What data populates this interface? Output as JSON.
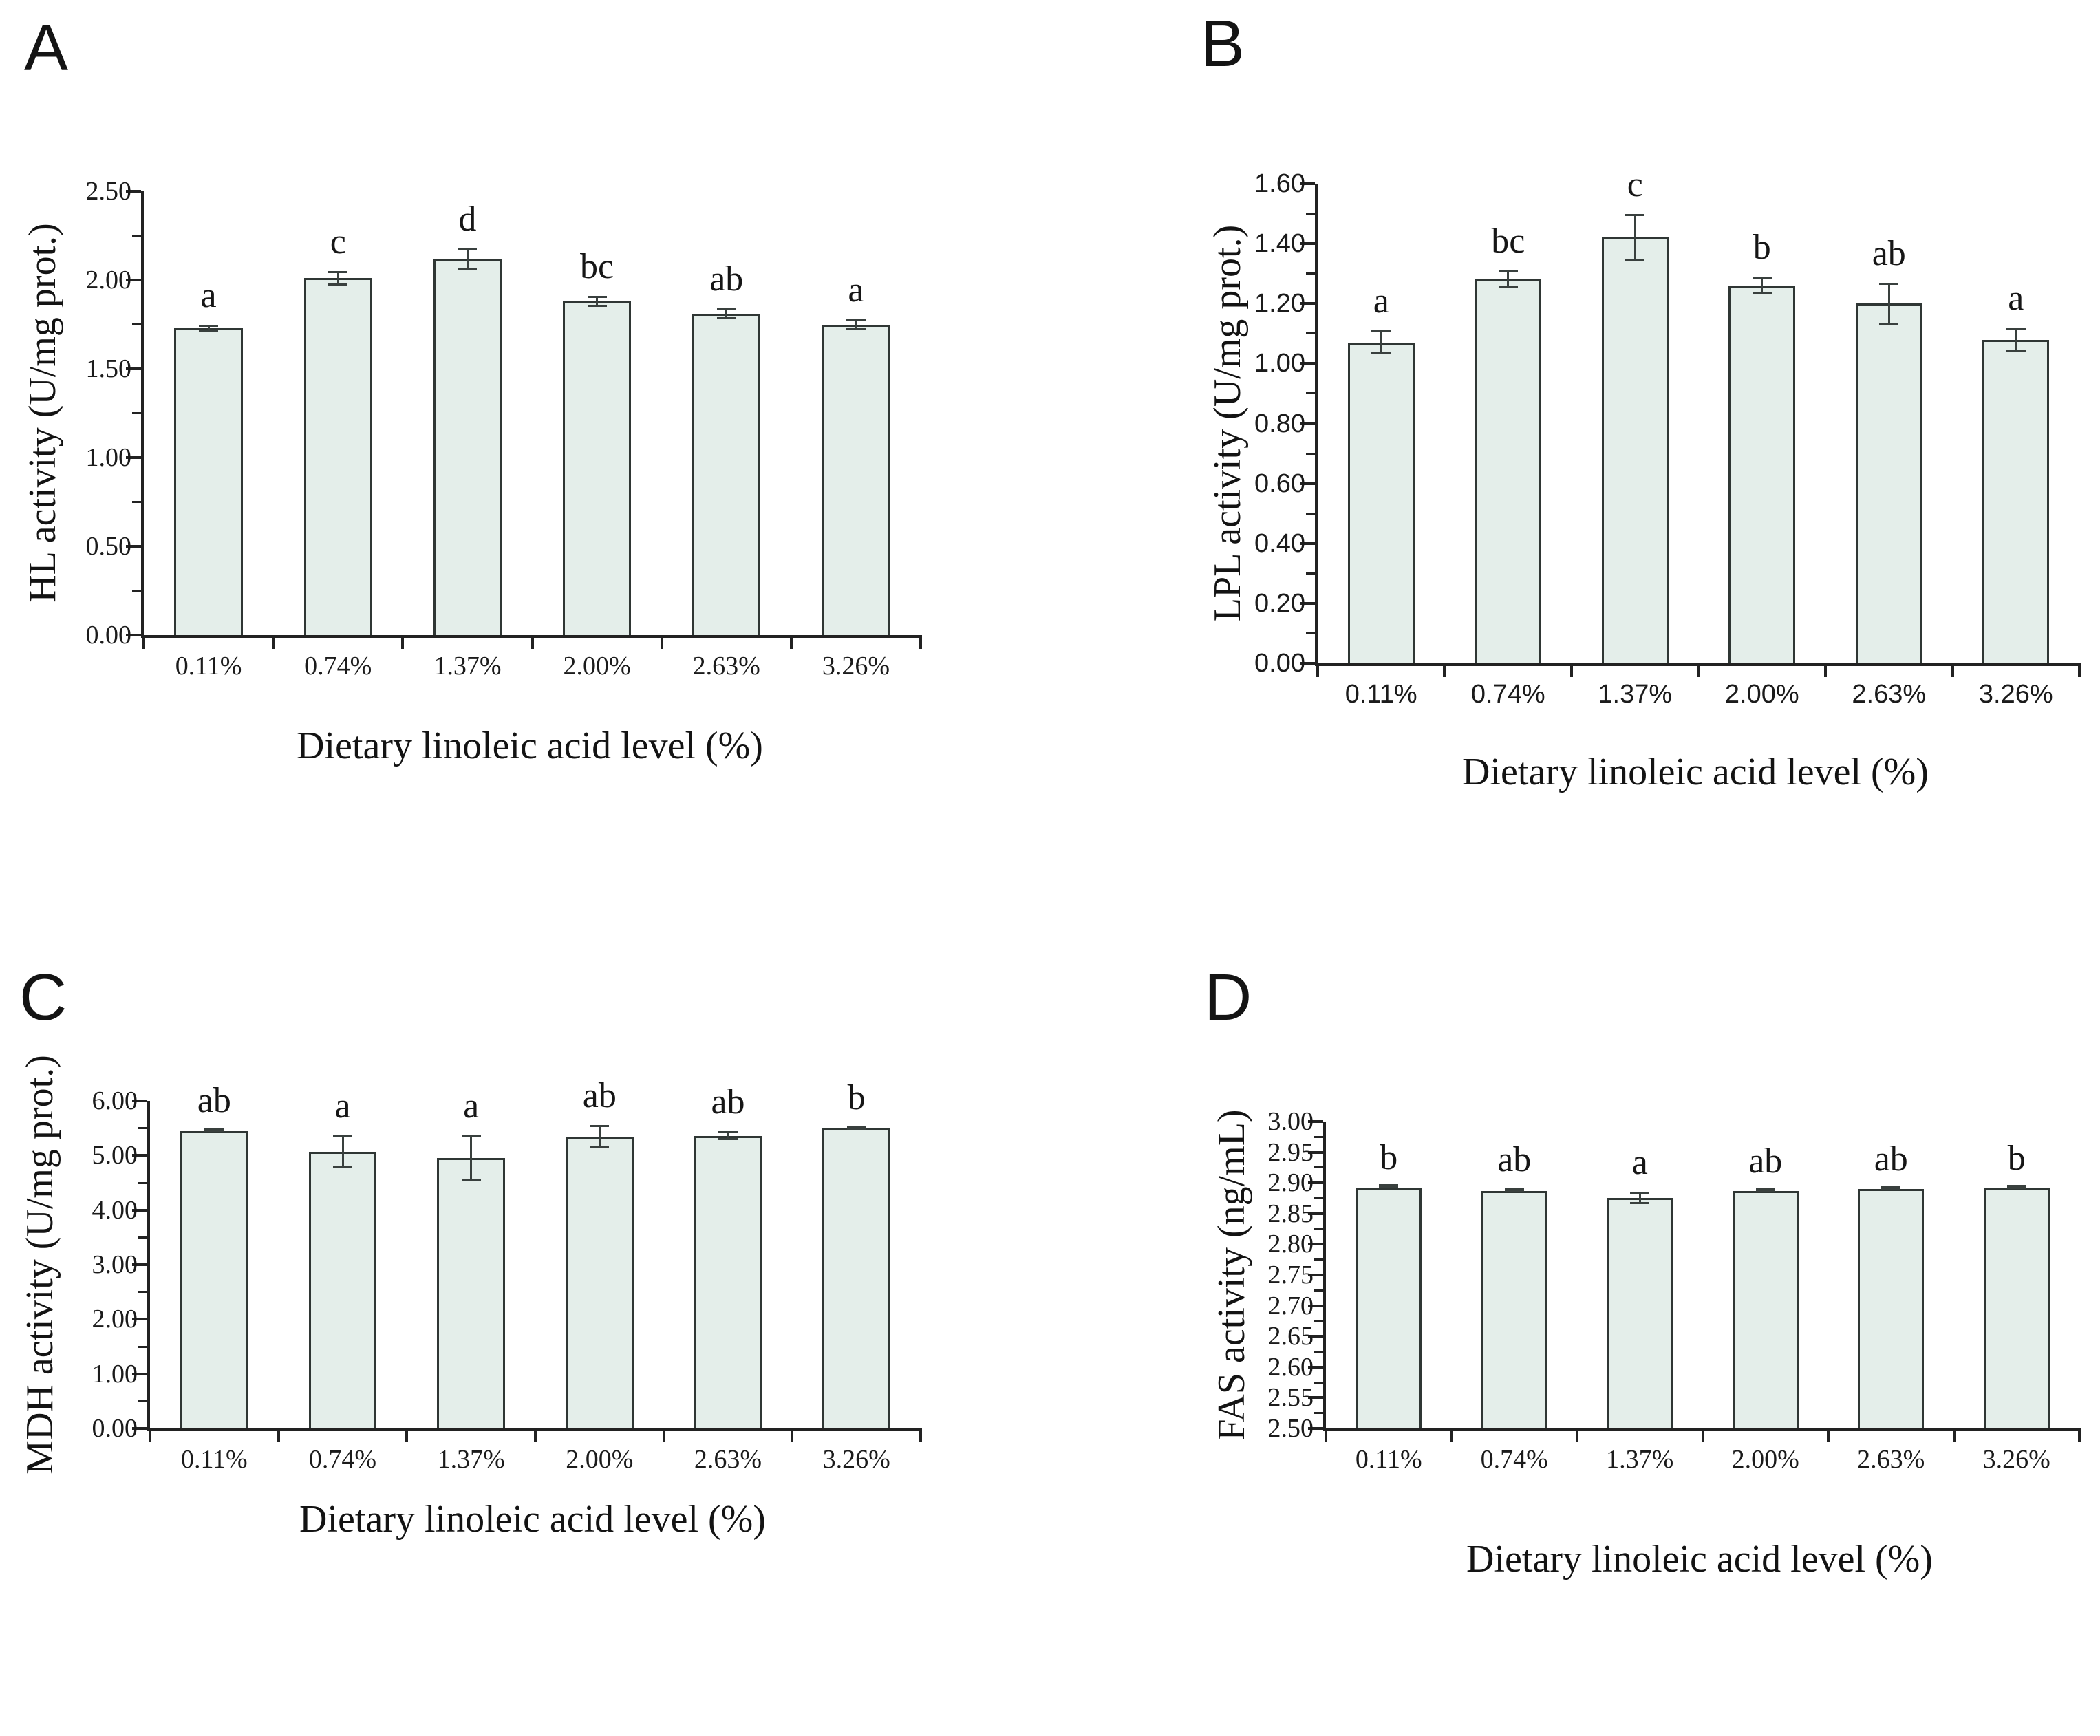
{
  "figure": {
    "background_color": "#ffffff",
    "bar_fill": "#e4eeea",
    "bar_border": "#2f3634",
    "axis_color": "#222222",
    "error_bar_color": "#39403e",
    "shared_xlabel": "Dietary linoleic acid level (%)"
  },
  "chart_data": [
    {
      "panel": "A",
      "type": "bar",
      "title": "",
      "ylabel": "HL activity (U/mg prot.)",
      "xlabel": "Dietary linoleic acid level (%)",
      "categories": [
        "0.11%",
        "0.74%",
        "1.37%",
        "2.00%",
        "2.63%",
        "3.26%"
      ],
      "values": [
        1.73,
        2.01,
        2.12,
        1.88,
        1.81,
        1.75
      ],
      "errors": [
        0.02,
        0.04,
        0.06,
        0.03,
        0.03,
        0.03
      ],
      "sig_letters": [
        "a",
        "c",
        "d",
        "bc",
        "ab",
        "a"
      ],
      "ylim": [
        0.0,
        2.5
      ],
      "ytick_step": 0.5,
      "ytick_labels": [
        "0.00",
        "0.50",
        "1.00",
        "1.50",
        "2.00",
        "2.50"
      ],
      "tick_font": "serif",
      "grid": false,
      "legend": null
    },
    {
      "panel": "B",
      "type": "bar",
      "title": "",
      "ylabel": "LPL activity (U/mg prot.)",
      "xlabel": "Dietary linoleic acid level (%)",
      "categories": [
        "0.11%",
        "0.74%",
        "1.37%",
        "2.00%",
        "2.63%",
        "3.26%"
      ],
      "values": [
        1.07,
        1.28,
        1.42,
        1.26,
        1.2,
        1.08
      ],
      "errors": [
        0.04,
        0.03,
        0.08,
        0.03,
        0.07,
        0.04
      ],
      "sig_letters": [
        "a",
        "bc",
        "c",
        "b",
        "ab",
        "a"
      ],
      "ylim": [
        0.0,
        1.6
      ],
      "ytick_step": 0.2,
      "ytick_labels": [
        "0.00",
        "0.20",
        "0.40",
        "0.60",
        "0.80",
        "1.00",
        "1.20",
        "1.40",
        "1.60"
      ],
      "tick_font": "sans",
      "grid": false,
      "legend": null
    },
    {
      "panel": "C",
      "type": "bar",
      "title": "",
      "ylabel": "MDH activity (U/mg prot.)",
      "xlabel": "Dietary linoleic acid level (%)",
      "categories": [
        "0.11%",
        "0.74%",
        "1.37%",
        "2.00%",
        "2.63%",
        "3.26%"
      ],
      "values": [
        5.45,
        5.07,
        4.95,
        5.35,
        5.36,
        5.49
      ],
      "errors": [
        0.02,
        0.3,
        0.42,
        0.21,
        0.08,
        0.03
      ],
      "sig_letters": [
        "ab",
        "a",
        "a",
        "ab",
        "ab",
        "b"
      ],
      "ylim": [
        0.0,
        6.0
      ],
      "ytick_step": 1.0,
      "ytick_labels": [
        "0.00",
        "1.00",
        "2.00",
        "3.00",
        "4.00",
        "5.00",
        "6.00"
      ],
      "tick_font": "serif",
      "grid": false,
      "legend": null
    },
    {
      "panel": "D",
      "type": "bar",
      "title": "",
      "ylabel": "FAS activity (ng/mL)",
      "xlabel": "Dietary linoleic acid level (%)",
      "categories": [
        "0.11%",
        "0.74%",
        "1.37%",
        "2.00%",
        "2.63%",
        "3.26%"
      ],
      "values": [
        2.892,
        2.887,
        2.876,
        2.887,
        2.89,
        2.891
      ],
      "errors": [
        0.001,
        0.003,
        0.01,
        0.001,
        0.001,
        0.001
      ],
      "sig_letters": [
        "b",
        "ab",
        "a",
        "ab",
        "ab",
        "b"
      ],
      "ylim": [
        2.5,
        3.0
      ],
      "ytick_step": 0.05,
      "ytick_labels": [
        "2.50",
        "2.55",
        "2.60",
        "2.65",
        "2.70",
        "2.75",
        "2.80",
        "2.85",
        "2.90",
        "2.95",
        "3.00"
      ],
      "tick_font": "serif",
      "grid": false,
      "legend": null
    }
  ]
}
